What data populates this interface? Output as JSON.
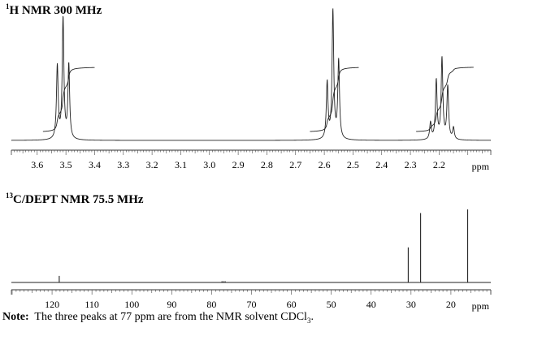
{
  "chart_data": [
    {
      "type": "line",
      "title_sup": "1",
      "title": "H NMR 300 MHz",
      "xlabel": "ppm",
      "xlim": [
        3.69,
        2.02
      ],
      "x_reversed": true,
      "grid": false,
      "tick_labels": [
        "3.6",
        "3.5",
        "3.4",
        "3.3",
        "3.2",
        "3.1",
        "3.0",
        "2.9",
        "2.8",
        "2.7",
        "2.6",
        "2.5",
        "2.4",
        "2.3",
        "2.2"
      ],
      "multiplets": [
        {
          "center": 3.51,
          "peaks": [
            {
              "x": 3.53,
              "y": 0.57
            },
            {
              "x": 3.51,
              "y": 0.94
            },
            {
              "x": 3.49,
              "y": 0.58
            }
          ],
          "integral": [
            3.58,
            3.4
          ]
        },
        {
          "center": 2.57,
          "peaks": [
            {
              "x": 2.59,
              "y": 0.44
            },
            {
              "x": 2.57,
              "y": 1.0
            },
            {
              "x": 2.55,
              "y": 0.61
            }
          ],
          "integral": [
            2.65,
            2.48
          ]
        },
        {
          "center": 2.19,
          "peaks": [
            {
              "x": 2.23,
              "y": 0.13
            },
            {
              "x": 2.21,
              "y": 0.46
            },
            {
              "x": 2.19,
              "y": 0.63
            },
            {
              "x": 2.17,
              "y": 0.41
            },
            {
              "x": 2.15,
              "y": 0.09
            }
          ],
          "integral": [
            2.28,
            2.08
          ]
        }
      ]
    },
    {
      "type": "line",
      "title_sup": "13",
      "title": "C/DEPT NMR 75.5 MHz",
      "xlabel": "ppm",
      "xlim": [
        130.2,
        10.0
      ],
      "x_reversed": true,
      "grid": false,
      "tick_labels": [
        "120",
        "110",
        "100",
        "90",
        "80",
        "70",
        "60",
        "50",
        "40",
        "30",
        "20"
      ],
      "peaks": [
        {
          "x": 118.2,
          "y": 0.09
        },
        {
          "x": 77.4,
          "y": 0.01
        },
        {
          "x": 77.0,
          "y": 0.01
        },
        {
          "x": 76.6,
          "y": 0.01
        },
        {
          "x": 30.7,
          "y": 0.48
        },
        {
          "x": 27.6,
          "y": 0.95
        },
        {
          "x": 15.8,
          "y": 1.0
        }
      ]
    }
  ],
  "note": {
    "label": "Note:",
    "text": "The three peaks at 77 ppm are from the NMR solvent CDCl",
    "subscript": "3",
    "end": "."
  }
}
